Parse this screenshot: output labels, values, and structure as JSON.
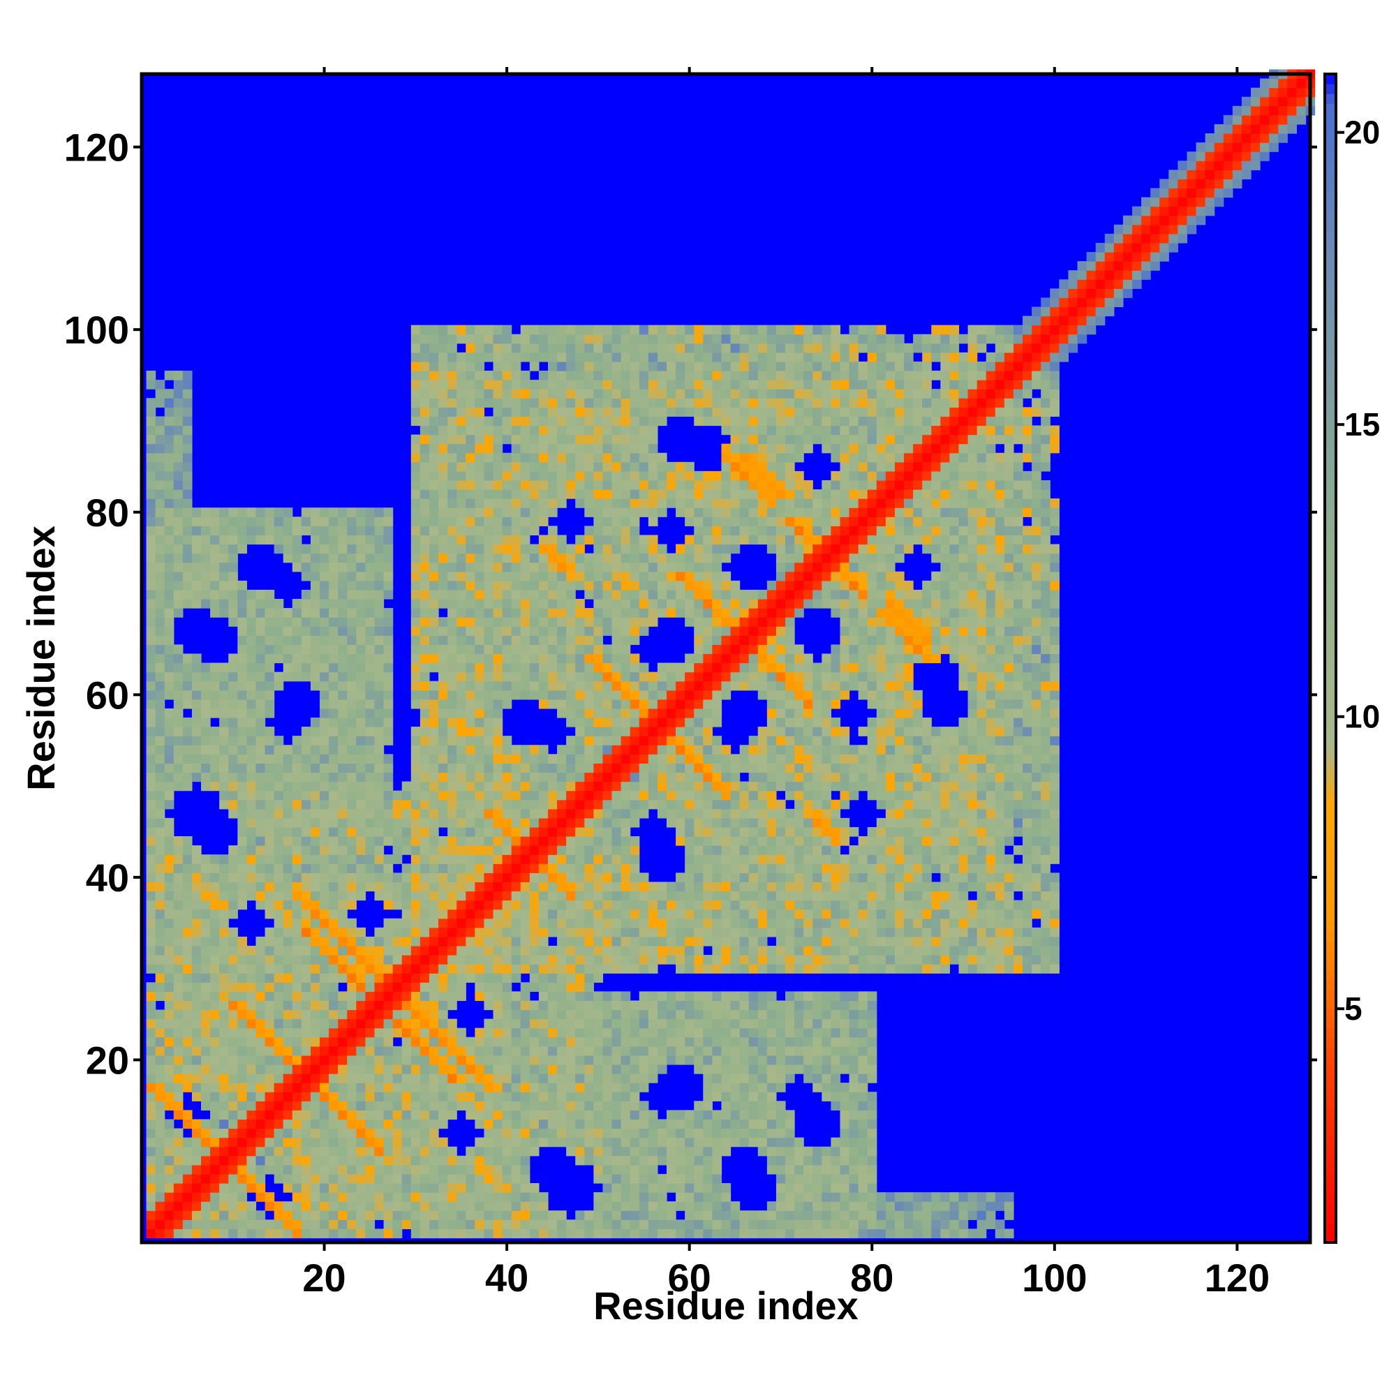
{
  "chart_data": {
    "type": "heatmap",
    "title": "",
    "xlabel": "Residue index",
    "ylabel": "Residue index",
    "xlim": [
      1,
      128
    ],
    "ylim": [
      1,
      128
    ],
    "xticks": [
      20,
      40,
      60,
      80,
      100,
      120
    ],
    "yticks": [
      20,
      40,
      60,
      80,
      100,
      120
    ],
    "n_residues": 128,
    "matrix_symmetric": true,
    "background_value": 21,
    "colorbar": {
      "range": [
        1,
        21
      ],
      "ticks": [
        5,
        10,
        15,
        20
      ],
      "stops": [
        {
          "value": 1,
          "color": "#ff0000"
        },
        {
          "value": 4,
          "color": "#ff4000"
        },
        {
          "value": 6.5,
          "color": "#ff9900"
        },
        {
          "value": 8.5,
          "color": "#ffa500"
        },
        {
          "value": 9.5,
          "color": "#a8b88a"
        },
        {
          "value": 13,
          "color": "#8fb08c"
        },
        {
          "value": 17.5,
          "color": "#6f8fb0"
        },
        {
          "value": 20.5,
          "color": "#4a6fd0"
        },
        {
          "value": 21,
          "color": "#0000ff"
        }
      ]
    },
    "contact_diagonals": [
      {
        "i0": 1,
        "j0": 17,
        "len": 15,
        "value": 7
      },
      {
        "i0": 10,
        "j0": 26,
        "len": 9,
        "value": 7
      },
      {
        "i0": 17,
        "j0": 38,
        "len": 8,
        "value": 7
      },
      {
        "i0": 24,
        "j0": 31,
        "len": 4,
        "value": 7
      },
      {
        "i0": 28,
        "j0": 24,
        "len": 7,
        "value": 7
      },
      {
        "i0": 38,
        "j0": 47,
        "len": 5,
        "value": 7
      },
      {
        "i0": 44,
        "j0": 76,
        "len": 3,
        "value": 7
      },
      {
        "i0": 49,
        "j0": 64,
        "len": 8,
        "value": 7
      },
      {
        "i0": 59,
        "j0": 73,
        "len": 8,
        "value": 7
      },
      {
        "i0": 66,
        "j0": 86,
        "len": 5,
        "value": 7
      },
      {
        "i0": 71,
        "j0": 79,
        "len": 3,
        "value": 7
      },
      {
        "i0": 81,
        "j0": 69,
        "len": 6,
        "value": 7
      }
    ],
    "contact_regions": [
      {
        "x": [
          1,
          40
        ],
        "y": [
          1,
          50
        ],
        "value": 12
      },
      {
        "x": [
          1,
          26
        ],
        "y": [
          45,
          80
        ],
        "value": 13
      },
      {
        "x": [
          1,
          5
        ],
        "y": [
          80,
          90
        ],
        "value": 15
      },
      {
        "x": [
          30,
          80
        ],
        "y": [
          1,
          27
        ],
        "value": 13
      },
      {
        "x": [
          30,
          100
        ],
        "y": [
          30,
          95
        ],
        "value": 12
      },
      {
        "x": [
          45,
          75
        ],
        "y": [
          80,
          100
        ],
        "value": 15
      },
      {
        "x": [
          80,
          95
        ],
        "y": [
          1,
          5
        ],
        "value": 16
      }
    ],
    "holes": [
      {
        "x": 8,
        "y": 66,
        "r": 2.5
      },
      {
        "x": 8,
        "y": 45,
        "r": 2.8
      },
      {
        "x": 16,
        "y": 57,
        "r": 2.2
      },
      {
        "x": 25,
        "y": 36,
        "r": 2.2
      },
      {
        "x": 16,
        "y": 72,
        "r": 2.0
      },
      {
        "x": 14,
        "y": 5,
        "r": 2.0
      },
      {
        "x": 35,
        "y": 12,
        "r": 2.2
      },
      {
        "x": 47,
        "y": 6,
        "r": 3.0
      },
      {
        "x": 59,
        "y": 17,
        "r": 2.5
      },
      {
        "x": 67,
        "y": 6,
        "r": 2.5
      },
      {
        "x": 74,
        "y": 13,
        "r": 2.5
      },
      {
        "x": 42,
        "y": 57,
        "r": 2.5
      },
      {
        "x": 56,
        "y": 45,
        "r": 2.2
      },
      {
        "x": 58,
        "y": 66,
        "r": 2.5
      },
      {
        "x": 65,
        "y": 56,
        "r": 2.2
      },
      {
        "x": 67,
        "y": 74,
        "r": 2.5
      },
      {
        "x": 74,
        "y": 66,
        "r": 2.2
      },
      {
        "x": 78,
        "y": 58,
        "r": 2.2
      },
      {
        "x": 87,
        "y": 62,
        "r": 2.5
      },
      {
        "x": 85,
        "y": 74,
        "r": 2.2
      },
      {
        "x": 59,
        "y": 88,
        "r": 2.5
      },
      {
        "x": 47,
        "y": 79,
        "r": 2.0
      }
    ]
  }
}
